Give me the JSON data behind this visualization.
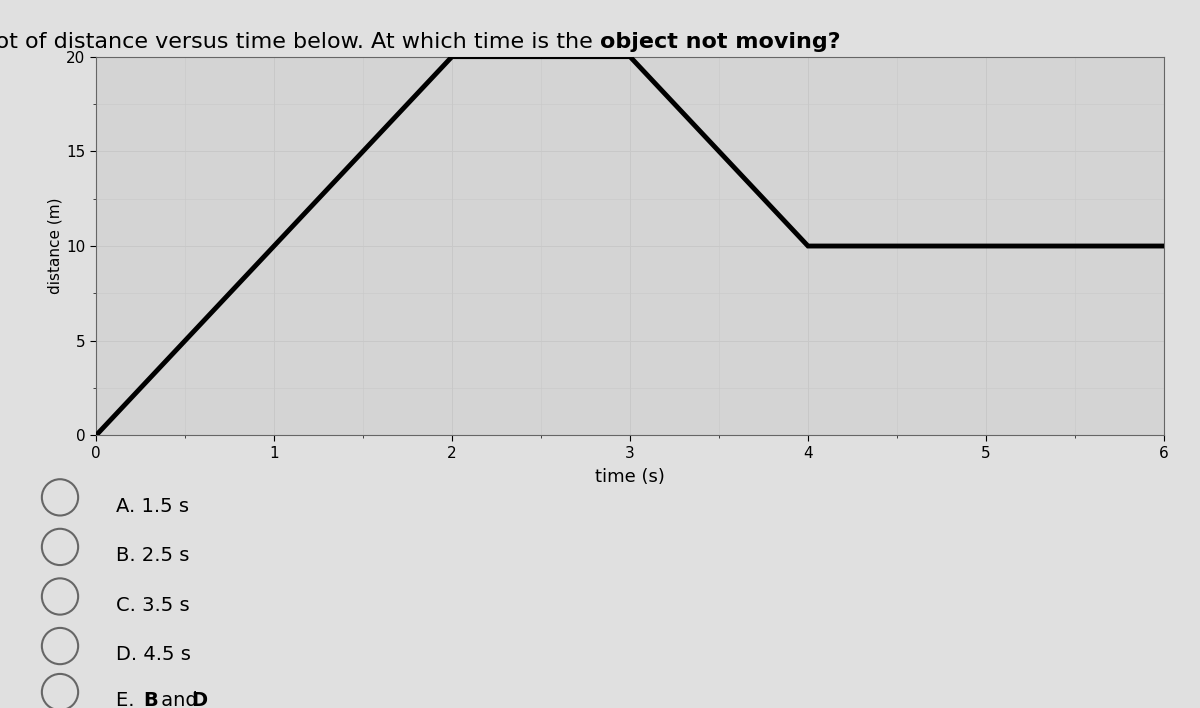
{
  "title_normal": "Given the plot of distance versus time below. At which time is the ",
  "title_bold": "object not moving?",
  "xlabel": "time (s)",
  "ylabel": "distance (m)",
  "x_data": [
    0,
    2,
    3,
    4,
    5,
    6
  ],
  "y_data": [
    0,
    20,
    20,
    10,
    10,
    10
  ],
  "xlim": [
    0,
    6
  ],
  "ylim": [
    0,
    20
  ],
  "xticks": [
    0,
    1,
    2,
    3,
    4,
    5,
    6
  ],
  "yticks": [
    0,
    5,
    10,
    15,
    20
  ],
  "line_color": "#000000",
  "line_width": 3.5,
  "grid_color": "#c8c8c8",
  "bg_color": "#d4d4d4",
  "fig_bg_color": "#e0e0e0",
  "choices": [
    "A. 1.5 s",
    "B. 2.5 s",
    "C. 3.5 s",
    "D. 4.5 s"
  ],
  "choice_E_parts": [
    "E. ",
    "B",
    " and ",
    "D"
  ],
  "choice_fontsize": 14,
  "title_fontsize": 16
}
